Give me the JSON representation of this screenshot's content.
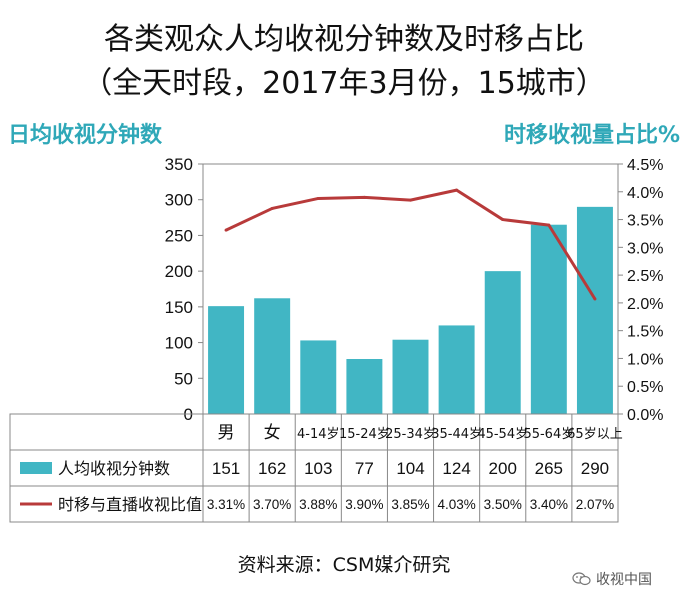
{
  "title": {
    "line1": "各类观众人均收视分钟数及时移占比",
    "line2": "（全天时段，2017年3月份，15城市）"
  },
  "left_axis_title": "日均收视分钟数",
  "right_axis_title": "时移收视量占比%",
  "source": "资料来源：CSM媒介研究",
  "watermark": {
    "text": "收视中国",
    "icon": "wechat-icon"
  },
  "colors": {
    "bar": "#41b6c4",
    "line": "#b83a3a",
    "accent": "#2fa8b8"
  },
  "chart_data": {
    "type": "bar",
    "categories": [
      "男",
      "女",
      "4-14岁",
      "15-24岁",
      "25-34岁",
      "35-44岁",
      "45-54岁",
      "55-64岁",
      "65岁以上"
    ],
    "series": [
      {
        "name": "人均收视分钟数",
        "type": "bar",
        "axis": "left",
        "values": [
          151,
          162,
          103,
          77,
          104,
          124,
          200,
          265,
          290
        ]
      },
      {
        "name": "时移与直播收视比值",
        "type": "line",
        "axis": "right",
        "values": [
          3.31,
          3.7,
          3.88,
          3.9,
          3.85,
          4.03,
          3.5,
          3.4,
          2.07
        ],
        "labels": [
          "3.31%",
          "3.70%",
          "3.88%",
          "3.90%",
          "3.85%",
          "4.03%",
          "3.50%",
          "3.40%",
          "2.07%"
        ]
      }
    ],
    "ylim_left": [
      0,
      350
    ],
    "left_ticks": [
      "0",
      "50",
      "100",
      "150",
      "200",
      "250",
      "300",
      "350"
    ],
    "left_tick_values": [
      0,
      50,
      100,
      150,
      200,
      250,
      300,
      350
    ],
    "ylim_right": [
      0,
      4.5
    ],
    "right_ticks": [
      "0.0%",
      "0.5%",
      "1.0%",
      "1.5%",
      "2.0%",
      "2.5%",
      "3.0%",
      "3.5%",
      "4.0%",
      "4.5%"
    ],
    "right_tick_values": [
      0,
      0.5,
      1.0,
      1.5,
      2.0,
      2.5,
      3.0,
      3.5,
      4.0,
      4.5
    ],
    "data_table": true
  }
}
